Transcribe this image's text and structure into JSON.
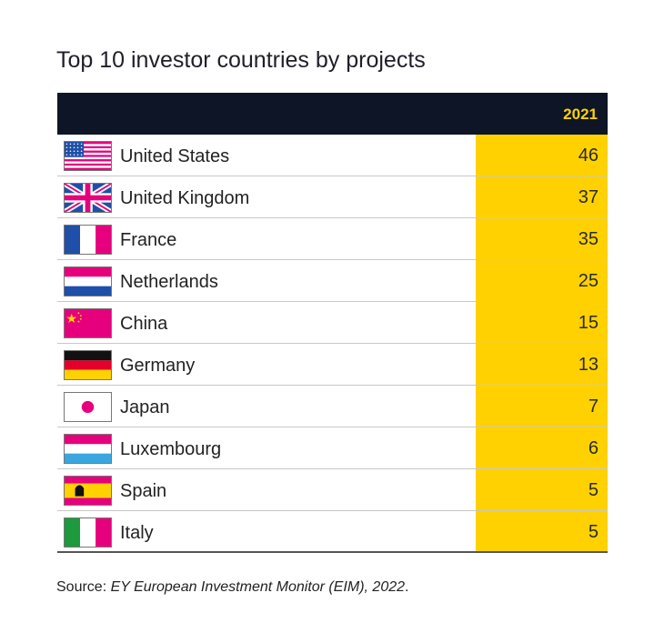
{
  "chart_data": {
    "type": "table",
    "title": "Top 10 investor countries by projects",
    "column_header": "2021",
    "rows": [
      {
        "country": "United States",
        "value": 46,
        "flag": "us-flag-icon"
      },
      {
        "country": "United Kingdom",
        "value": 37,
        "flag": "uk-flag-icon"
      },
      {
        "country": "France",
        "value": 35,
        "flag": "france-flag-icon"
      },
      {
        "country": "Netherlands",
        "value": 25,
        "flag": "netherlands-flag-icon"
      },
      {
        "country": "China",
        "value": 15,
        "flag": "china-flag-icon"
      },
      {
        "country": "Germany",
        "value": 13,
        "flag": "germany-flag-icon"
      },
      {
        "country": "Japan",
        "value": 7,
        "flag": "japan-flag-icon"
      },
      {
        "country": "Luxembourg",
        "value": 6,
        "flag": "luxembourg-flag-icon"
      },
      {
        "country": "Spain",
        "value": 5,
        "flag": "spain-flag-icon"
      },
      {
        "country": "Italy",
        "value": 5,
        "flag": "italy-flag-icon"
      }
    ]
  },
  "source": {
    "prefix": "Source: ",
    "text": "EY European Investment Monitor (EIM), 2022",
    "suffix": "."
  },
  "colors": {
    "header_bg": "#0d1526",
    "accent": "#ffd100",
    "flag_pink": "#e6007e",
    "flag_blue": "#1f4fa8"
  }
}
